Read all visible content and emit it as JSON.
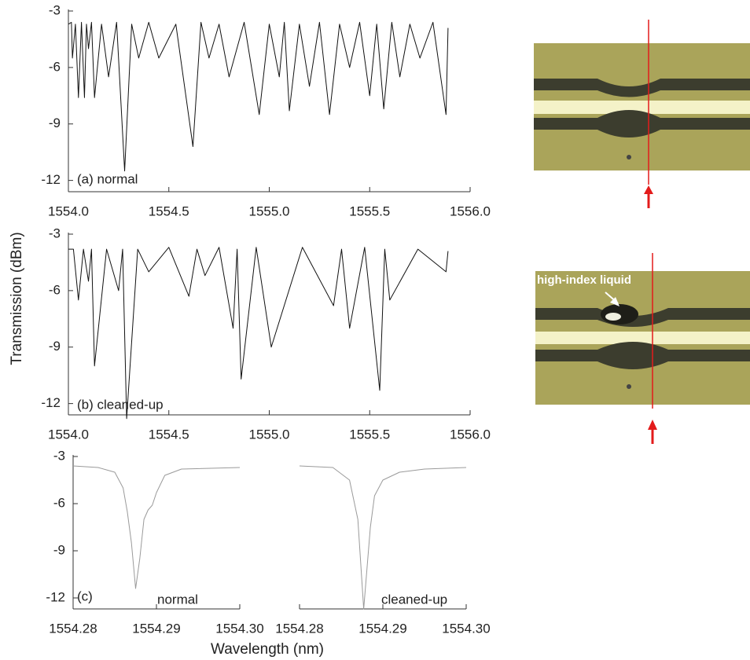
{
  "figure": {
    "ylabel": "Transmission (dBm)",
    "xlabel": "Wavelength (nm)",
    "image_label": "high-index liquid"
  },
  "chart_data": [
    {
      "type": "line",
      "color": "#111111",
      "annotations": [
        "(a) normal"
      ],
      "x": [
        1554.0,
        1554.015,
        1554.02,
        1554.035,
        1554.05,
        1554.065,
        1554.08,
        1554.09,
        1554.1,
        1554.115,
        1554.13,
        1554.165,
        1554.2,
        1554.24,
        1554.28,
        1554.315,
        1554.35,
        1554.4,
        1554.45,
        1554.535,
        1554.62,
        1554.66,
        1554.7,
        1554.75,
        1554.8,
        1554.875,
        1554.95,
        1555.0,
        1555.05,
        1555.075,
        1555.1,
        1555.15,
        1555.2,
        1555.25,
        1555.3,
        1555.35,
        1555.4,
        1555.45,
        1555.5,
        1555.535,
        1555.57,
        1555.61,
        1555.65,
        1555.7,
        1555.75,
        1555.815,
        1555.88,
        1555.89
      ],
      "values": [
        -3.7,
        -3.6,
        -5.5,
        -3.7,
        -7.6,
        -3.6,
        -7.6,
        -3.7,
        -5.0,
        -3.6,
        -7.6,
        -3.7,
        -6.5,
        -3.6,
        -11.5,
        -3.7,
        -5.5,
        -3.6,
        -5.5,
        -3.7,
        -10.2,
        -3.6,
        -5.5,
        -3.7,
        -6.5,
        -3.6,
        -8.5,
        -3.7,
        -6.5,
        -3.6,
        -8.3,
        -3.7,
        -7.0,
        -3.6,
        -8.5,
        -3.7,
        -6.0,
        -3.6,
        -7.5,
        -3.7,
        -8.2,
        -3.6,
        -6.5,
        -3.7,
        -5.5,
        -3.6,
        -8.5,
        -3.9
      ],
      "xlim": [
        1554.0,
        1556.0
      ],
      "ylim": [
        -12.6,
        -3
      ],
      "xticks": [
        {
          "value": 1554.0,
          "label": "1554.0"
        },
        1554.5,
        {
          "value": 1555.0,
          "label": "1555.0"
        },
        1555.5,
        {
          "value": 1556.0,
          "label": "1556.0"
        }
      ],
      "yticks": [
        -3,
        -6,
        -9,
        -12
      ]
    },
    {
      "type": "line",
      "color": "#111111",
      "annotations": [
        "(b) cleaned-up"
      ],
      "x": [
        1554.0,
        1554.025,
        1554.05,
        1554.075,
        1554.1,
        1554.115,
        1554.13,
        1554.19,
        1554.25,
        1554.27,
        1554.29,
        1554.345,
        1554.4,
        1554.5,
        1554.6,
        1554.64,
        1554.68,
        1554.75,
        1554.82,
        1554.84,
        1554.86,
        1554.935,
        1555.01,
        1555.165,
        1555.32,
        1555.36,
        1555.4,
        1555.475,
        1555.55,
        1555.575,
        1555.6,
        1555.74,
        1555.88,
        1555.89
      ],
      "values": [
        -3.8,
        -3.8,
        -6.5,
        -3.8,
        -5.5,
        -3.8,
        -10.0,
        -3.8,
        -6.0,
        -3.8,
        -12.8,
        -3.8,
        -5.0,
        -3.7,
        -6.3,
        -3.8,
        -5.2,
        -3.7,
        -8.0,
        -3.8,
        -10.7,
        -3.7,
        -9.0,
        -3.7,
        -6.8,
        -3.8,
        -8.0,
        -3.7,
        -11.3,
        -3.8,
        -6.5,
        -3.8,
        -5.0,
        -3.9
      ],
      "xlim": [
        1554.0,
        1556.0
      ],
      "ylim": [
        -12.6,
        -3
      ],
      "xticks": [
        {
          "value": 1554.0,
          "label": "1554.0"
        },
        1554.5,
        {
          "value": 1555.0,
          "label": "1555.0"
        },
        1555.5,
        {
          "value": 1556.0,
          "label": "1556.0"
        }
      ],
      "yticks": [
        -3,
        -6,
        -9,
        -12
      ]
    },
    {
      "type": "line",
      "color": "#9a9a9a",
      "annotations": [
        "(c)",
        "normal"
      ],
      "x": [
        1554.28,
        1554.283,
        1554.285,
        1554.286,
        1554.2865,
        1554.287,
        1554.2875,
        1554.288,
        1554.2885,
        1554.289,
        1554.2895,
        1554.29,
        1554.291,
        1554.293,
        1554.3
      ],
      "values": [
        -3.6,
        -3.7,
        -4.0,
        -5.0,
        -6.5,
        -8.5,
        -11.4,
        -9.5,
        -7.0,
        -6.4,
        -6.1,
        -5.3,
        -4.2,
        -3.8,
        -3.7
      ],
      "xlim": [
        1554.28,
        1554.3
      ],
      "ylim": [
        -12.7,
        -3
      ],
      "xticks": [
        1554.28,
        1554.29,
        {
          "value": 1554.3,
          "label": "1554.30"
        }
      ],
      "yticks": [
        -3,
        -6,
        -9,
        -12
      ]
    },
    {
      "type": "line",
      "color": "#9a9a9a",
      "annotations": [
        "cleaned-up"
      ],
      "x": [
        1554.28,
        1554.284,
        1554.286,
        1554.287,
        1554.2877,
        1554.2885,
        1554.289,
        1554.29,
        1554.292,
        1554.295,
        1554.3
      ],
      "values": [
        -3.6,
        -3.7,
        -4.5,
        -7.0,
        -12.7,
        -7.5,
        -5.5,
        -4.5,
        -4.0,
        -3.8,
        -3.7
      ],
      "xlim": [
        1554.28,
        1554.3
      ],
      "ylim": [
        -12.7,
        -3
      ],
      "xticks": [
        1554.28,
        1554.29,
        {
          "value": 1554.3,
          "label": "1554.30"
        }
      ]
    }
  ]
}
